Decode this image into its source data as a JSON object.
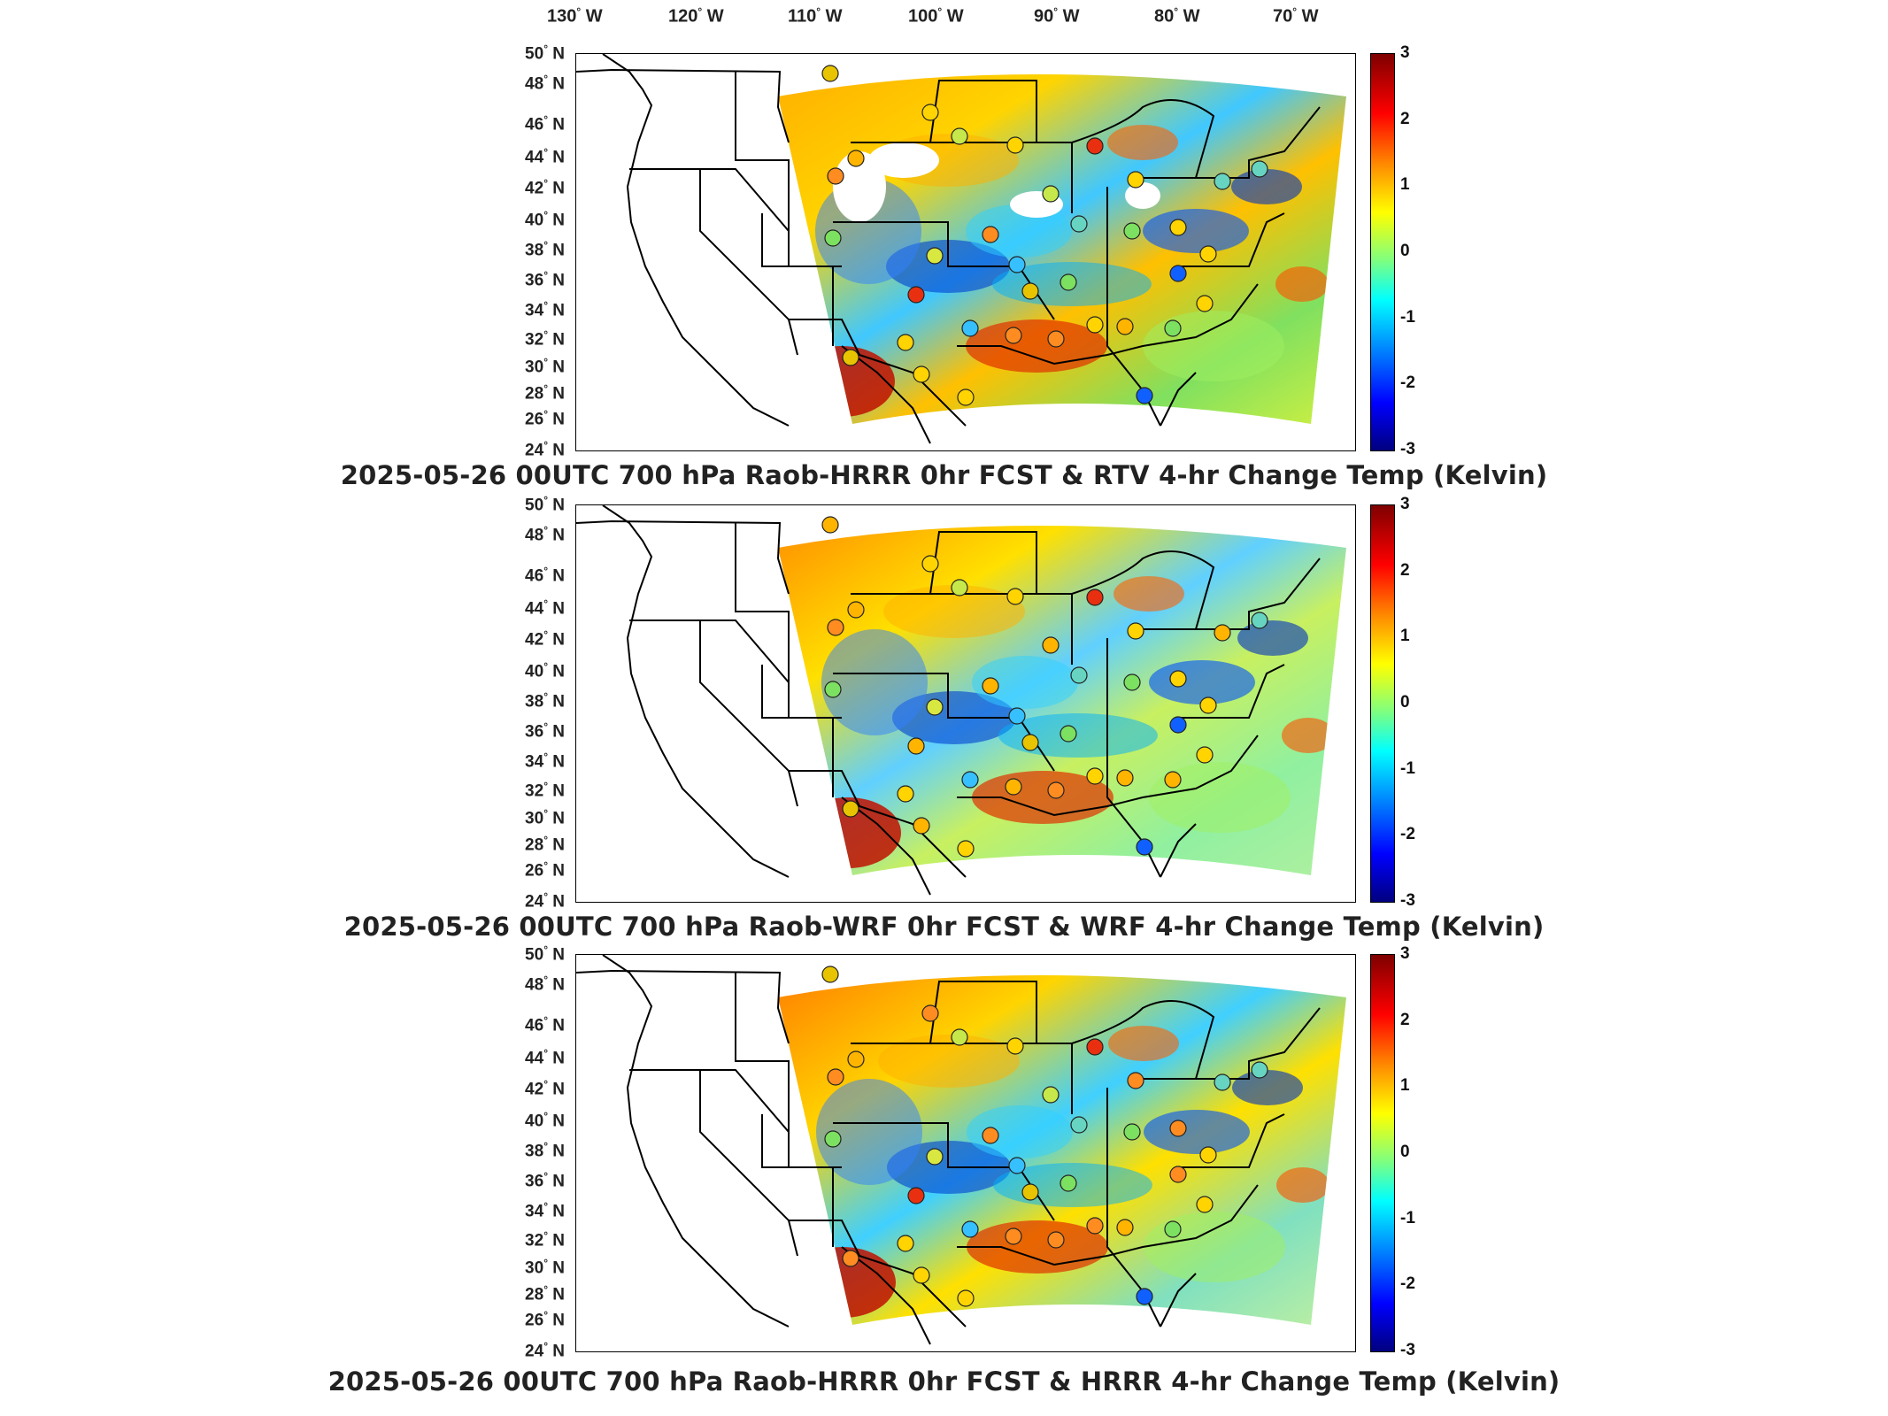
{
  "lon_labels": [
    "130",
    "120",
    "110",
    "100",
    "90",
    "80",
    "70"
  ],
  "lon_hemisphere": "W",
  "lat_labels": [
    "50",
    "48",
    "46",
    "44",
    "42",
    "40",
    "38",
    "36",
    "34",
    "32",
    "30",
    "28",
    "26",
    "24"
  ],
  "lat_hemisphere": "N",
  "colorbar_ticks": [
    "3",
    "2",
    "1",
    "0",
    "-1",
    "-2",
    "-3"
  ],
  "colorbar_range": [
    -3,
    3
  ],
  "colormap_stops": [
    "#00007f",
    "#0000ff",
    "#0080ff",
    "#00ffff",
    "#7fff7f",
    "#ffff00",
    "#ff8c00",
    "#ff0000",
    "#7f0000"
  ],
  "panels": [
    {
      "caption": "2025-05-26 00UTC 700 hPa Raob-HRRR 0hr FCST & RTV 4-hr Change Temp (Kelvin)"
    },
    {
      "caption": "2025-05-26 00UTC 700 hPa Raob-WRF 0hr FCST & WRF 4-hr Change Temp (Kelvin)"
    },
    {
      "caption": "2025-05-26 00UTC 700 hPa Raob-HRRR 0hr FCST & HRRR 4-hr Change Temp (Kelvin)"
    }
  ]
}
